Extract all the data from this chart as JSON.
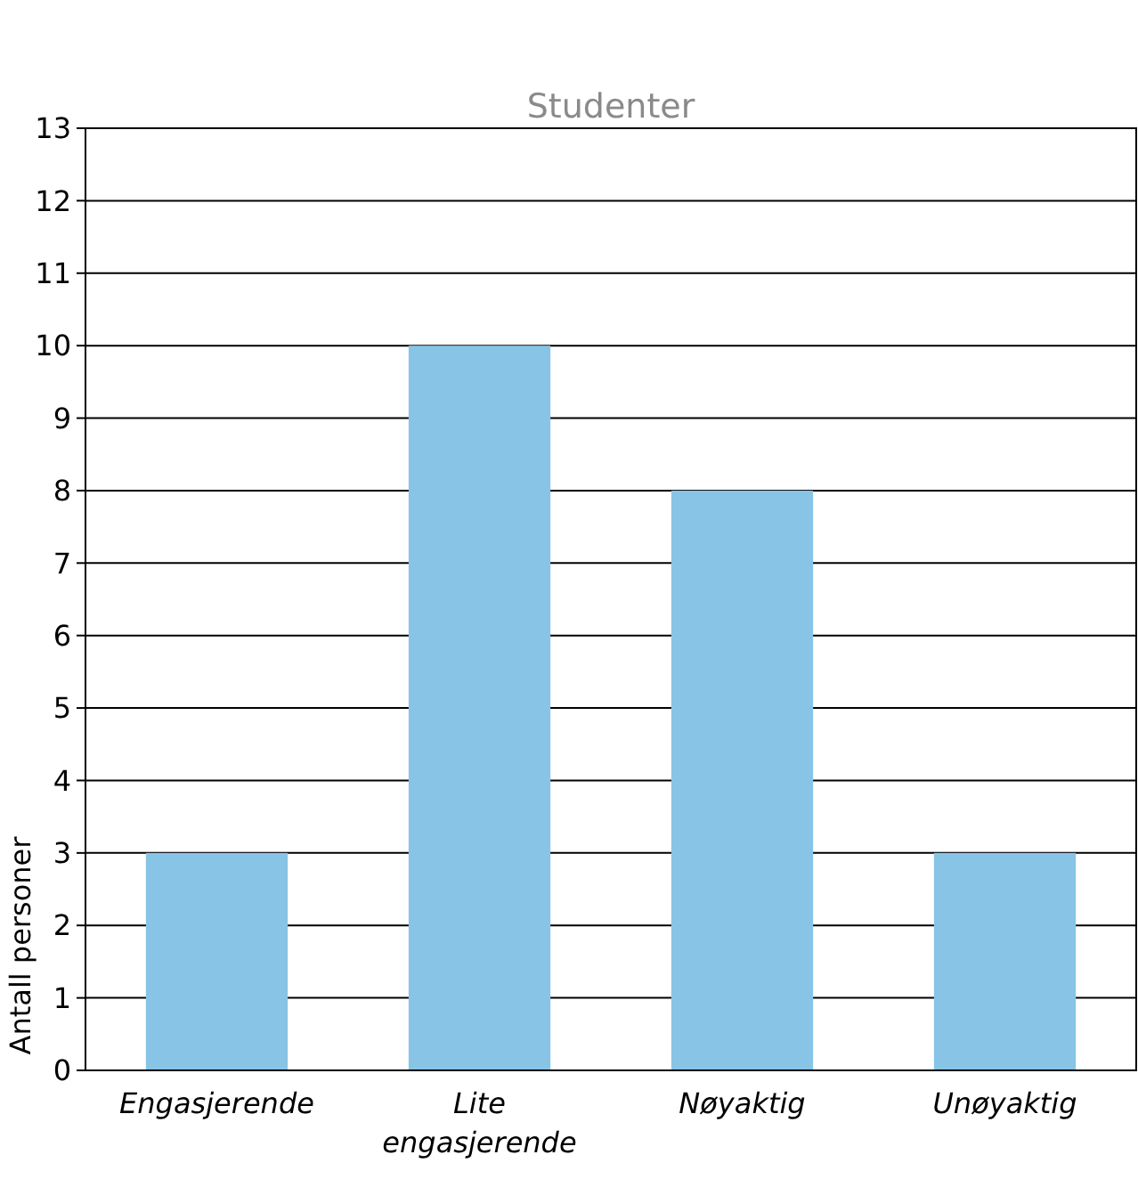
{
  "chart_data": {
    "type": "bar",
    "title": "Studenter",
    "ylabel": "Antall personer",
    "categories": [
      "Engasjerende",
      "Lite engasjerende",
      "Nøyaktig",
      "Unøyaktig"
    ],
    "values": [
      3,
      10,
      8,
      3
    ],
    "color": "#88c4e6",
    "ylim": [
      0,
      13
    ],
    "yticks": [
      0,
      1,
      2,
      3,
      4,
      5,
      6,
      7,
      8,
      9,
      10,
      11,
      12,
      13
    ],
    "grid": "y"
  }
}
